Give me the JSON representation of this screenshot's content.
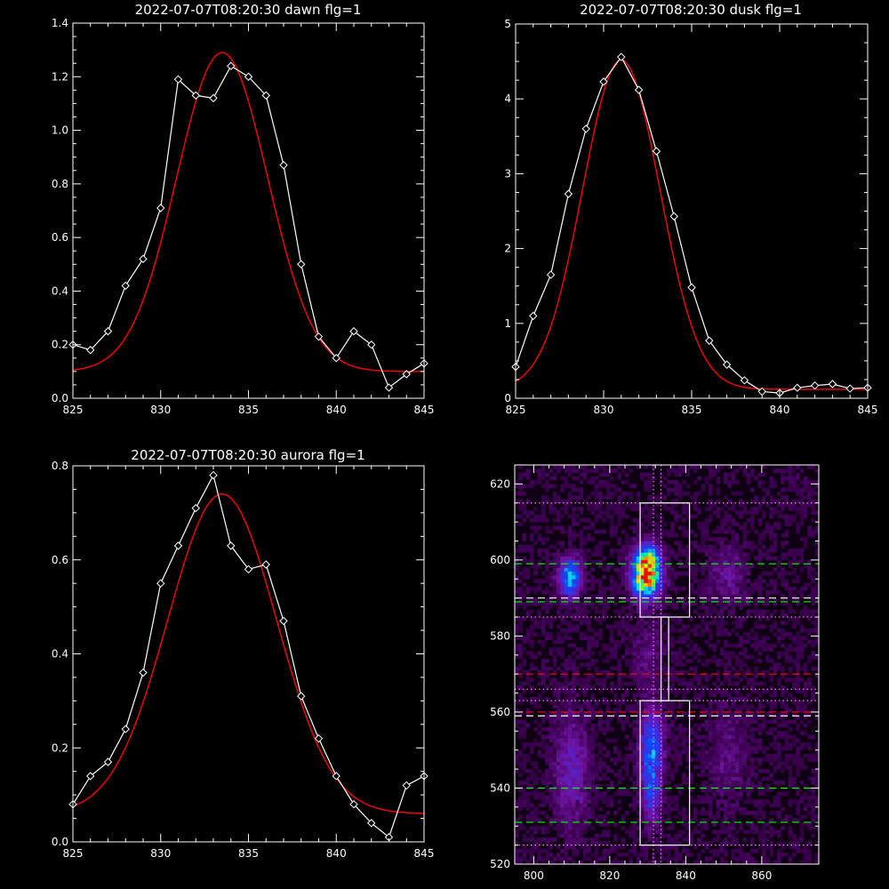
{
  "colors": {
    "background": "#000000",
    "axis": "#ffffff",
    "data": "#ffffff",
    "fit": "#ff0000"
  },
  "chart_data": [
    {
      "id": "dawn",
      "type": "line",
      "title": "2022-07-07T08:20:30 dawn flg=1",
      "xlabel": "",
      "ylabel": "",
      "xlim": [
        825,
        845
      ],
      "ylim": [
        0,
        1.4
      ],
      "xticks": [
        825,
        830,
        835,
        840,
        845
      ],
      "yticks": [
        0.0,
        0.2,
        0.4,
        0.6,
        0.8,
        1.0,
        1.2,
        1.4
      ],
      "xtick_labels": [
        "825",
        "830",
        "835",
        "840",
        "845"
      ],
      "ytick_labels": [
        "0.0",
        "0.2",
        "0.4",
        "0.6",
        "0.8",
        "1.0",
        "1.2",
        "1.4"
      ],
      "series": [
        {
          "role": "data",
          "marker": "diamond",
          "x": [
            825,
            826,
            827,
            828,
            829,
            830,
            831,
            832,
            833,
            834,
            835,
            836,
            837,
            838,
            839,
            840,
            841,
            842,
            843,
            844,
            845
          ],
          "y": [
            0.2,
            0.18,
            0.25,
            0.42,
            0.52,
            0.71,
            1.19,
            1.13,
            1.12,
            1.24,
            1.2,
            1.13,
            0.87,
            0.5,
            0.23,
            0.15,
            0.25,
            0.2,
            0.04,
            0.09,
            0.13
          ]
        },
        {
          "role": "fit",
          "model": "gaussian",
          "amplitude": 1.19,
          "center": 833.5,
          "sigma": 2.6,
          "offset": 0.1
        }
      ]
    },
    {
      "id": "dusk",
      "type": "line",
      "title": "2022-07-07T08:20:30 dusk flg=1",
      "xlabel": "",
      "ylabel": "",
      "xlim": [
        825,
        845
      ],
      "ylim": [
        0,
        5
      ],
      "xticks": [
        825,
        830,
        835,
        840,
        845
      ],
      "yticks": [
        0,
        1,
        2,
        3,
        4,
        5
      ],
      "xtick_labels": [
        "825",
        "830",
        "835",
        "840",
        "845"
      ],
      "ytick_labels": [
        "0",
        "1",
        "2",
        "3",
        "4",
        "5"
      ],
      "series": [
        {
          "role": "data",
          "marker": "diamond",
          "x": [
            825,
            826,
            827,
            828,
            829,
            830,
            831,
            832,
            833,
            834,
            835,
            836,
            837,
            838,
            839,
            840,
            841,
            842,
            843,
            844,
            845
          ],
          "y": [
            0.42,
            1.1,
            1.65,
            2.73,
            3.6,
            4.23,
            4.56,
            4.12,
            3.3,
            2.43,
            1.48,
            0.77,
            0.45,
            0.24,
            0.09,
            0.07,
            0.14,
            0.17,
            0.19,
            0.13,
            0.14
          ]
        },
        {
          "role": "fit",
          "model": "gaussian",
          "amplitude": 4.4,
          "center": 831.0,
          "sigma": 2.2,
          "offset": 0.12
        }
      ]
    },
    {
      "id": "aurora",
      "type": "line",
      "title": "2022-07-07T08:20:30 aurora flg=1",
      "xlabel": "",
      "ylabel": "",
      "xlim": [
        825,
        845
      ],
      "ylim": [
        0,
        0.8
      ],
      "xticks": [
        825,
        830,
        835,
        840,
        845
      ],
      "yticks": [
        0.0,
        0.2,
        0.4,
        0.6,
        0.8
      ],
      "xtick_labels": [
        "825",
        "830",
        "835",
        "840",
        "845"
      ],
      "ytick_labels": [
        "0.0",
        "0.2",
        "0.4",
        "0.6",
        "0.8"
      ],
      "series": [
        {
          "role": "data",
          "marker": "diamond",
          "x": [
            825,
            826,
            827,
            828,
            829,
            830,
            831,
            832,
            833,
            834,
            835,
            836,
            837,
            838,
            839,
            840,
            841,
            842,
            843,
            844,
            845
          ],
          "y": [
            0.08,
            0.14,
            0.17,
            0.24,
            0.36,
            0.55,
            0.63,
            0.71,
            0.78,
            0.63,
            0.58,
            0.59,
            0.47,
            0.31,
            0.22,
            0.14,
            0.08,
            0.04,
            0.01,
            0.12,
            0.14
          ]
        },
        {
          "role": "fit",
          "model": "gaussian",
          "amplitude": 0.68,
          "center": 833.5,
          "sigma": 3.1,
          "offset": 0.06
        }
      ]
    },
    {
      "id": "image",
      "type": "heatmap",
      "title": "",
      "xlabel": "",
      "ylabel": "",
      "xlim": [
        795,
        875
      ],
      "ylim": [
        520,
        625
      ],
      "xticks": [
        800,
        820,
        840,
        860
      ],
      "yticks": [
        520,
        540,
        560,
        580,
        600,
        620
      ],
      "xtick_labels": [
        "800",
        "820",
        "840",
        "860"
      ],
      "ytick_labels": [
        "520",
        "540",
        "560",
        "580",
        "600",
        "620"
      ],
      "blobs": [
        {
          "x": 809.5,
          "y": 595.5,
          "sx": 2.0,
          "sy": 3.5,
          "amp": 0.55
        },
        {
          "x": 829.5,
          "y": 596.0,
          "sx": 2.5,
          "sy": 4.0,
          "amp": 1.0
        },
        {
          "x": 830.5,
          "y": 601.0,
          "sx": 1.8,
          "sy": 2.5,
          "amp": 0.35
        },
        {
          "x": 831.0,
          "y": 550.0,
          "sx": 2.0,
          "sy": 7.0,
          "amp": 0.45
        },
        {
          "x": 831.0,
          "y": 537.0,
          "sx": 1.5,
          "sy": 5.0,
          "amp": 0.25
        },
        {
          "x": 810.0,
          "y": 545.0,
          "sx": 3.0,
          "sy": 10.0,
          "amp": 0.22
        },
        {
          "x": 851.0,
          "y": 596.0,
          "sx": 3.5,
          "sy": 5.0,
          "amp": 0.14
        },
        {
          "x": 851.0,
          "y": 548.0,
          "sx": 3.5,
          "sy": 9.0,
          "amp": 0.1
        },
        {
          "x": 830.0,
          "y": 575.0,
          "sx": 3.0,
          "sy": 6.0,
          "amp": 0.1
        }
      ],
      "boxes": [
        {
          "x0": 828,
          "x1": 841,
          "y0": 585,
          "y1": 615
        },
        {
          "x0": 828,
          "x1": 841,
          "y0": 525,
          "y1": 563
        },
        {
          "x0": 833.5,
          "x1": 835.5,
          "y0": 563,
          "y1": 585
        }
      ],
      "hlines": [
        {
          "y": 615,
          "color": "#ff77ff",
          "style": "dot"
        },
        {
          "y": 599,
          "color": "#00ff00",
          "style": "dash"
        },
        {
          "y": 590,
          "color": "#ffffff",
          "style": "dash"
        },
        {
          "y": 589,
          "color": "#00ff00",
          "style": "dash"
        },
        {
          "y": 585,
          "color": "#ff77ff",
          "style": "dot"
        },
        {
          "y": 570,
          "color": "#ff0000",
          "style": "dash"
        },
        {
          "y": 566,
          "color": "#ff77ff",
          "style": "dot"
        },
        {
          "y": 563,
          "color": "#ff77ff",
          "style": "dot"
        },
        {
          "y": 560,
          "color": "#ff0000",
          "style": "dash"
        },
        {
          "y": 559,
          "color": "#ffffff",
          "style": "dash"
        },
        {
          "y": 540,
          "color": "#00ff00",
          "style": "dash"
        },
        {
          "y": 531,
          "color": "#00ff00",
          "style": "dash"
        },
        {
          "y": 525,
          "color": "#ff77ff",
          "style": "dot"
        }
      ],
      "vlines": [
        {
          "x": 831.5,
          "color": "#ff77ff",
          "style": "dot"
        },
        {
          "x": 833.5,
          "color": "#ff77ff",
          "style": "dot"
        }
      ]
    }
  ]
}
